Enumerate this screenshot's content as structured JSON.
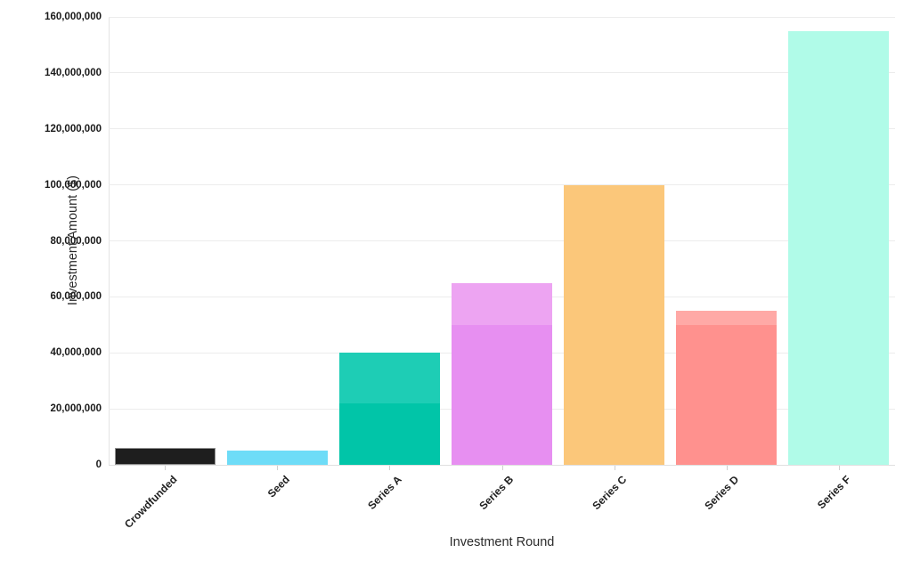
{
  "figure": {
    "y_axis_title": "Investment Amount ($)",
    "x_axis_title": "Investment Round"
  },
  "chart_data": {
    "type": "bar",
    "title": "",
    "xlabel": "Investment Round",
    "ylabel": "Investment Amount ($)",
    "categories": [
      "Crowdfunded",
      "Seed",
      "Series A",
      "Series B",
      "Series C",
      "Series D",
      "Series F"
    ],
    "values": [
      6000000,
      5000000,
      40000000,
      65000000,
      100000000,
      55000000,
      155000000
    ],
    "shade_split_values": [
      null,
      null,
      22000000,
      50000000,
      null,
      50000000,
      null
    ],
    "bar_colors": [
      {
        "main": "#1e1e1e",
        "lower": null,
        "border": "#919191"
      },
      {
        "main": "#6edcf7",
        "lower": null,
        "border": null
      },
      {
        "main": "#1ecdb5",
        "lower": "#01c5a8",
        "border": null
      },
      {
        "main": "#eda4f2",
        "lower": "#e78ff1",
        "border": null
      },
      {
        "main": "#fbc77a",
        "lower": null,
        "border": null
      },
      {
        "main": "#ffa9a6",
        "lower": "#ff918e",
        "border": null
      },
      {
        "main": "#b0fbe8",
        "lower": null,
        "border": null
      }
    ],
    "ylim": [
      0,
      160000000
    ],
    "ytick_step": 20000000,
    "ytick_labels": [
      "0",
      "20,000,000",
      "40,000,000",
      "60,000,000",
      "80,000,000",
      "100,000,000",
      "120,000,000",
      "140,000,000",
      "160,000,000"
    ],
    "grid": "horizontal",
    "legend": "none",
    "background": "#ffffff"
  }
}
